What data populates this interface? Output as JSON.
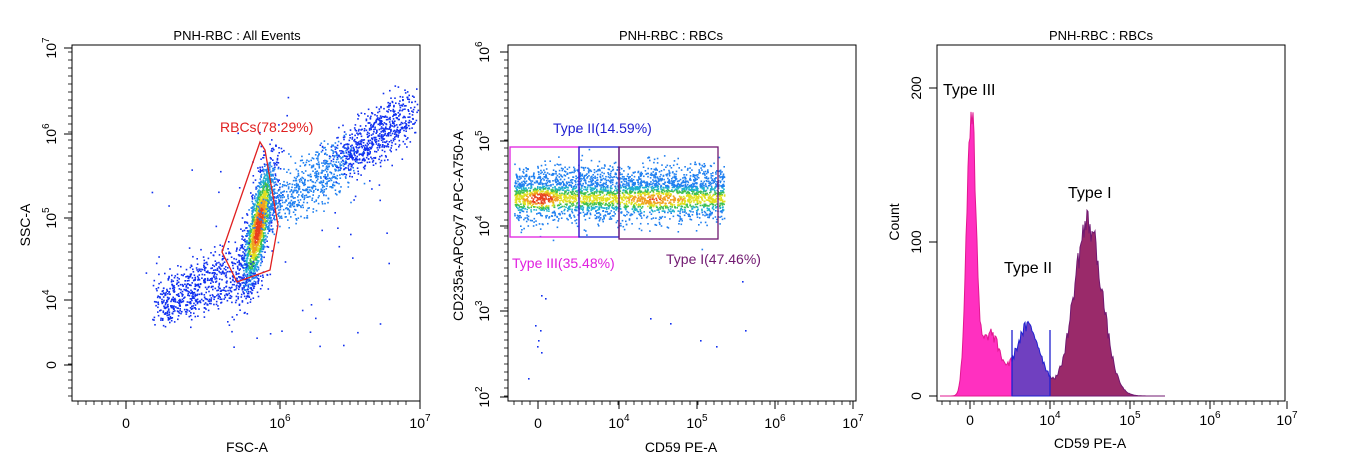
{
  "chart_data": [
    {
      "type": "scatter",
      "title": "PNH-RBC : All Events",
      "xlabel": "FSC-A",
      "ylabel": "SSC-A",
      "x_scale": "biexponential",
      "y_scale": "biexponential",
      "x_ticks": [
        {
          "base": "0",
          "exp": ""
        },
        {
          "base": "10",
          "exp": "6"
        },
        {
          "base": "10",
          "exp": "7"
        }
      ],
      "y_ticks": [
        {
          "base": "0",
          "exp": ""
        },
        {
          "base": "10",
          "exp": "4"
        },
        {
          "base": "10",
          "exp": "5"
        },
        {
          "base": "10",
          "exp": "6"
        },
        {
          "base": "10",
          "exp": "7"
        }
      ],
      "gates": [
        {
          "name": "RBCs",
          "percent": 78.29,
          "label": "RBCs(78.29%)",
          "color": "#e02020",
          "shape": "polygon"
        }
      ],
      "populations": [
        {
          "name": "main",
          "x_center": 700000,
          "y_center": 80000,
          "events": "dense"
        },
        {
          "name": "debris",
          "x_center": 200000,
          "y_center": 15000,
          "events": "sparse"
        }
      ]
    },
    {
      "type": "scatter",
      "title": "PNH-RBC : RBCs",
      "xlabel": "CD59 PE-A",
      "ylabel": "CD235a-APCcy7 APC-A750-A",
      "x_scale": "biexponential",
      "y_scale": "log",
      "x_ticks": [
        {
          "base": "0",
          "exp": ""
        },
        {
          "base": "10",
          "exp": "4"
        },
        {
          "base": "10",
          "exp": "5"
        },
        {
          "base": "10",
          "exp": "6"
        },
        {
          "base": "10",
          "exp": "7"
        }
      ],
      "y_ticks": [
        {
          "base": "10",
          "exp": "2"
        },
        {
          "base": "10",
          "exp": "3"
        },
        {
          "base": "10",
          "exp": "4"
        },
        {
          "base": "10",
          "exp": "5"
        },
        {
          "base": "10",
          "exp": "6"
        }
      ],
      "gates": [
        {
          "name": "Type III",
          "percent": 35.48,
          "label": "Type III(35.48%)",
          "color": "#e020e0"
        },
        {
          "name": "Type II",
          "percent": 14.59,
          "label": "Type II(14.59%)",
          "color": "#2020d0"
        },
        {
          "name": "Type I",
          "percent": 47.46,
          "label": "Type I(47.46%)",
          "color": "#701870"
        }
      ]
    },
    {
      "type": "area",
      "title": "PNH-RBC : RBCs",
      "xlabel": "CD59 PE-A",
      "ylabel": "Count",
      "ylim": [
        0,
        230
      ],
      "x_ticks": [
        {
          "base": "0",
          "exp": ""
        },
        {
          "base": "10",
          "exp": "4"
        },
        {
          "base": "10",
          "exp": "5"
        },
        {
          "base": "10",
          "exp": "6"
        },
        {
          "base": "10",
          "exp": "7"
        }
      ],
      "y_ticks": [
        "0",
        "100",
        "200"
      ],
      "regions": [
        {
          "name": "Type III",
          "label": "Type III",
          "color": "#ff30c0",
          "peak_count": 188
        },
        {
          "name": "Type II",
          "label": "Type II",
          "color": "#7040c0",
          "peak_count": 50
        },
        {
          "name": "Type I",
          "label": "Type I",
          "color": "#9a2a6a",
          "peak_count": 115
        }
      ]
    }
  ]
}
